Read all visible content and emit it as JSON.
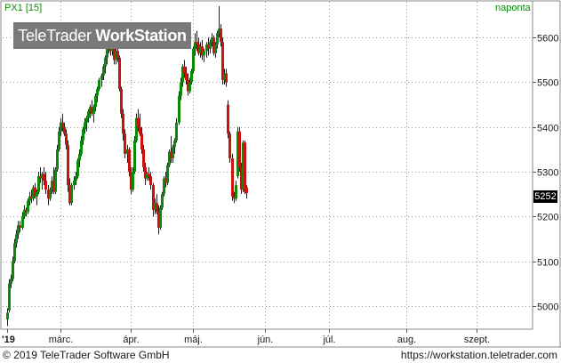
{
  "header": {
    "symbol_label": "PX1 [15]",
    "interval_label": "naponta"
  },
  "logo": {
    "brand": "TeleTrader",
    "product": "WorkStation"
  },
  "last_price_badge": "5252",
  "footer": {
    "copyright": "© 2019 TeleTrader Software GmbH",
    "url": "https://workstation.teletrader.com"
  },
  "colors": {
    "up": "#0a8a0a",
    "down": "#cc1111",
    "grid": "#9a9a9a",
    "axis_label": "#0a8a0a"
  },
  "chart_data": {
    "type": "candlestick",
    "title": "",
    "xlabel": "",
    "ylabel": "",
    "ylim": [
      4950,
      5680
    ],
    "y_ticks": [
      5000,
      5100,
      5200,
      5300,
      5400,
      5500,
      5600
    ],
    "x_ticks": [
      {
        "label": "'19",
        "index": 0
      },
      {
        "label": "márc.",
        "index": 29
      },
      {
        "label": "ápr.",
        "index": 67
      },
      {
        "label": "máj.",
        "index": 101
      },
      {
        "label": "jún.",
        "index": 140
      },
      {
        "label": "júl.",
        "index": 175
      },
      {
        "label": "aug.",
        "index": 217
      },
      {
        "label": "szept.",
        "index": 255
      }
    ],
    "grid": true,
    "candles": [
      [
        4970,
        4995,
        4955,
        4985
      ],
      [
        4990,
        5060,
        4985,
        5050
      ],
      [
        5050,
        5070,
        5040,
        5060
      ],
      [
        5060,
        5110,
        5055,
        5100
      ],
      [
        5100,
        5150,
        5095,
        5140
      ],
      [
        5140,
        5170,
        5130,
        5160
      ],
      [
        5160,
        5190,
        5150,
        5180
      ],
      [
        5180,
        5190,
        5165,
        5175
      ],
      [
        5175,
        5210,
        5170,
        5200
      ],
      [
        5200,
        5225,
        5195,
        5215
      ],
      [
        5215,
        5220,
        5200,
        5210
      ],
      [
        5210,
        5240,
        5205,
        5235
      ],
      [
        5235,
        5255,
        5225,
        5245
      ],
      [
        5245,
        5260,
        5230,
        5240
      ],
      [
        5240,
        5270,
        5235,
        5265
      ],
      [
        5265,
        5275,
        5240,
        5245
      ],
      [
        5245,
        5260,
        5225,
        5255
      ],
      [
        5255,
        5300,
        5250,
        5290
      ],
      [
        5290,
        5310,
        5275,
        5285
      ],
      [
        5285,
        5300,
        5260,
        5295
      ],
      [
        5295,
        5310,
        5270,
        5280
      ],
      [
        5280,
        5300,
        5250,
        5260
      ],
      [
        5260,
        5270,
        5225,
        5240
      ],
      [
        5240,
        5265,
        5235,
        5260
      ],
      [
        5260,
        5290,
        5250,
        5280
      ],
      [
        5280,
        5310,
        5250,
        5255
      ],
      [
        5255,
        5310,
        5250,
        5305
      ],
      [
        5305,
        5360,
        5300,
        5350
      ],
      [
        5350,
        5400,
        5345,
        5390
      ],
      [
        5390,
        5420,
        5380,
        5410
      ],
      [
        5410,
        5430,
        5390,
        5400
      ],
      [
        5400,
        5410,
        5380,
        5385
      ],
      [
        5385,
        5395,
        5350,
        5360
      ],
      [
        5360,
        5370,
        5255,
        5270
      ],
      [
        5270,
        5285,
        5225,
        5230
      ],
      [
        5230,
        5275,
        5225,
        5270
      ],
      [
        5270,
        5290,
        5260,
        5280
      ],
      [
        5280,
        5300,
        5270,
        5290
      ],
      [
        5290,
        5330,
        5285,
        5325
      ],
      [
        5325,
        5350,
        5310,
        5340
      ],
      [
        5340,
        5380,
        5335,
        5370
      ],
      [
        5370,
        5400,
        5360,
        5395
      ],
      [
        5395,
        5420,
        5385,
        5410
      ],
      [
        5410,
        5425,
        5390,
        5420
      ],
      [
        5420,
        5440,
        5410,
        5435
      ],
      [
        5435,
        5450,
        5420,
        5445
      ],
      [
        5445,
        5460,
        5425,
        5430
      ],
      [
        5430,
        5450,
        5410,
        5445
      ],
      [
        5445,
        5475,
        5435,
        5470
      ],
      [
        5470,
        5490,
        5455,
        5485
      ],
      [
        5485,
        5510,
        5480,
        5505
      ],
      [
        5505,
        5520,
        5490,
        5515
      ],
      [
        5515,
        5540,
        5505,
        5535
      ],
      [
        5535,
        5560,
        5520,
        5555
      ],
      [
        5555,
        5580,
        5540,
        5575
      ],
      [
        5575,
        5600,
        5565,
        5595
      ],
      [
        5595,
        5600,
        5560,
        5570
      ],
      [
        5570,
        5590,
        5560,
        5585
      ],
      [
        5585,
        5595,
        5540,
        5550
      ],
      [
        5550,
        5575,
        5540,
        5570
      ],
      [
        5570,
        5580,
        5545,
        5555
      ],
      [
        5555,
        5560,
        5480,
        5485
      ],
      [
        5485,
        5490,
        5420,
        5430
      ],
      [
        5430,
        5440,
        5370,
        5385
      ],
      [
        5385,
        5395,
        5330,
        5340
      ],
      [
        5340,
        5360,
        5320,
        5350
      ],
      [
        5350,
        5355,
        5290,
        5300
      ],
      [
        5300,
        5310,
        5250,
        5260
      ],
      [
        5260,
        5310,
        5255,
        5300
      ],
      [
        5300,
        5380,
        5295,
        5370
      ],
      [
        5370,
        5430,
        5365,
        5420
      ],
      [
        5420,
        5440,
        5390,
        5400
      ],
      [
        5400,
        5430,
        5380,
        5385
      ],
      [
        5385,
        5400,
        5340,
        5350
      ],
      [
        5350,
        5360,
        5300,
        5310
      ],
      [
        5310,
        5320,
        5270,
        5285
      ],
      [
        5285,
        5300,
        5280,
        5295
      ],
      [
        5295,
        5310,
        5280,
        5290
      ],
      [
        5290,
        5300,
        5260,
        5270
      ],
      [
        5270,
        5275,
        5200,
        5215
      ],
      [
        5215,
        5240,
        5205,
        5230
      ],
      [
        5230,
        5250,
        5205,
        5210
      ],
      [
        5210,
        5225,
        5160,
        5175
      ],
      [
        5175,
        5225,
        5170,
        5220
      ],
      [
        5220,
        5255,
        5215,
        5250
      ],
      [
        5250,
        5290,
        5245,
        5285
      ],
      [
        5285,
        5300,
        5265,
        5275
      ],
      [
        5275,
        5320,
        5270,
        5315
      ],
      [
        5315,
        5350,
        5310,
        5345
      ],
      [
        5345,
        5380,
        5320,
        5330
      ],
      [
        5330,
        5360,
        5320,
        5355
      ],
      [
        5355,
        5375,
        5340,
        5370
      ],
      [
        5370,
        5420,
        5365,
        5410
      ],
      [
        5410,
        5480,
        5405,
        5470
      ],
      [
        5470,
        5510,
        5460,
        5500
      ],
      [
        5500,
        5540,
        5490,
        5535
      ],
      [
        5535,
        5550,
        5510,
        5520
      ],
      [
        5520,
        5535,
        5495,
        5505
      ],
      [
        5505,
        5520,
        5470,
        5480
      ],
      [
        5480,
        5510,
        5475,
        5500
      ],
      [
        5500,
        5530,
        5495,
        5525
      ],
      [
        5525,
        5580,
        5520,
        5575
      ],
      [
        5575,
        5610,
        5560,
        5590
      ],
      [
        5590,
        5615,
        5570,
        5585
      ],
      [
        5585,
        5600,
        5560,
        5565
      ],
      [
        5565,
        5590,
        5555,
        5580
      ],
      [
        5580,
        5595,
        5550,
        5560
      ],
      [
        5560,
        5575,
        5545,
        5570
      ],
      [
        5570,
        5590,
        5555,
        5585
      ],
      [
        5585,
        5600,
        5560,
        5575
      ],
      [
        5575,
        5595,
        5565,
        5590
      ],
      [
        5590,
        5610,
        5580,
        5600
      ],
      [
        5600,
        5605,
        5560,
        5565
      ],
      [
        5565,
        5590,
        5555,
        5585
      ],
      [
        5585,
        5615,
        5575,
        5610
      ],
      [
        5610,
        5670,
        5600,
        5620
      ],
      [
        5620,
        5630,
        5580,
        5590
      ],
      [
        5590,
        5600,
        5495,
        5505
      ],
      [
        5505,
        5530,
        5495,
        5520
      ],
      [
        5520,
        5530,
        5490,
        5500
      ],
      [
        5450,
        5460,
        5375,
        5385
      ],
      [
        5385,
        5390,
        5320,
        5330
      ],
      [
        5330,
        5340,
        5235,
        5245
      ],
      [
        5245,
        5255,
        5230,
        5240
      ],
      [
        5240,
        5280,
        5235,
        5270
      ],
      [
        5290,
        5400,
        5285,
        5390
      ],
      [
        5390,
        5400,
        5300,
        5310
      ],
      [
        5310,
        5320,
        5250,
        5260
      ],
      [
        5260,
        5370,
        5255,
        5365
      ],
      [
        5365,
        5370,
        5250,
        5255
      ],
      [
        5265,
        5270,
        5240,
        5252
      ]
    ]
  }
}
